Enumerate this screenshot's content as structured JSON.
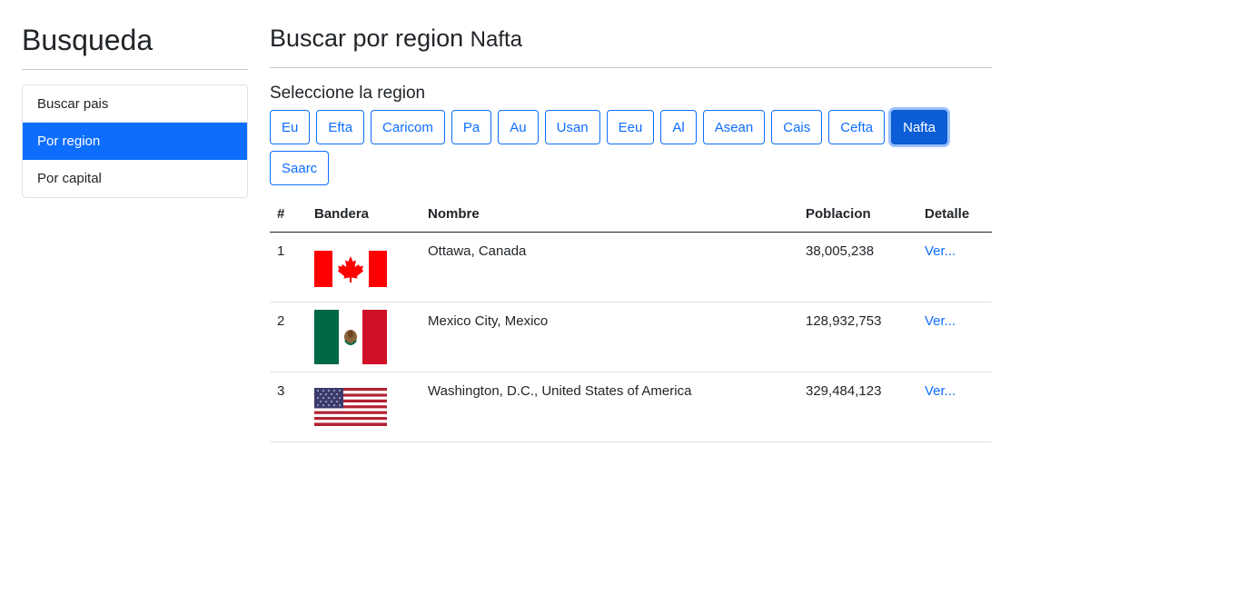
{
  "sidebar": {
    "title": "Busqueda",
    "items": [
      {
        "label": "Buscar pais"
      },
      {
        "label": "Por region"
      },
      {
        "label": "Por capital"
      }
    ]
  },
  "main": {
    "title": "Buscar por region",
    "title_region": "Nafta",
    "subtitle": "Seleccione la region",
    "regions": [
      "Eu",
      "Efta",
      "Caricom",
      "Pa",
      "Au",
      "Usan",
      "Eeu",
      "Al",
      "Asean",
      "Cais",
      "Cefta",
      "Nafta",
      "Saarc"
    ],
    "active_region": "Nafta"
  },
  "table": {
    "headers": [
      "#",
      "Bandera",
      "Nombre",
      "Poblacion",
      "Detalle"
    ],
    "rows": [
      {
        "num": "1",
        "nombre": "Ottawa, Canada",
        "poblacion": "38,005,238",
        "detalle": "Ver...",
        "flag": "canada-flag-icon"
      },
      {
        "num": "2",
        "nombre": "Mexico City, Mexico",
        "poblacion": "128,932,753",
        "detalle": "Ver...",
        "flag": "mexico-flag-icon"
      },
      {
        "num": "3",
        "nombre": "Washington, D.C., United States of America",
        "poblacion": "329,484,123",
        "detalle": "Ver...",
        "flag": "usa-flag-icon"
      }
    ]
  },
  "colors": {
    "primary": "#0d6efd",
    "active_button": "#0b5ed7"
  }
}
